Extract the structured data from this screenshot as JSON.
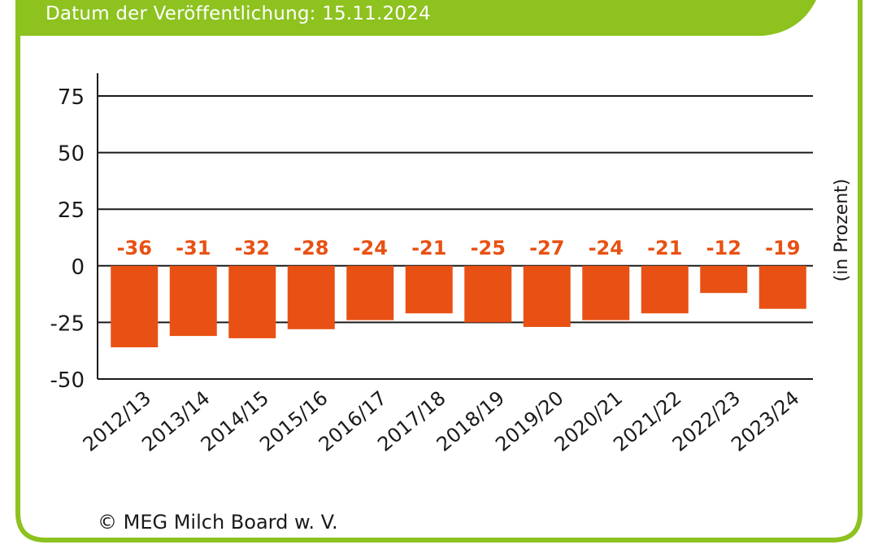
{
  "header": {
    "date_line": "Datum der Veröffentlichung: 15.11.2024"
  },
  "footer": {
    "copyright": "© MEG Milch Board w. V."
  },
  "colors": {
    "frame_green": "#8dc21f",
    "bar_orange": "#e85113",
    "label_orange": "#e85113",
    "grid": "#1a1a1a"
  },
  "chart_data": {
    "type": "bar",
    "categories": [
      "2012/13",
      "2013/14",
      "2014/15",
      "2015/16",
      "2016/17",
      "2017/18",
      "2018/19",
      "2019/20",
      "2020/21",
      "2021/22",
      "2022/23",
      "2023/24"
    ],
    "series": [
      {
        "values": [
          -36,
          -31,
          -32,
          -28,
          -24,
          -21,
          -25,
          -27,
          -24,
          -21,
          -12,
          -19
        ]
      }
    ],
    "data_labels": [
      "-36",
      "-31",
      "-32",
      "-28",
      "-24",
      "-21",
      "-25",
      "-27",
      "-24",
      "-21",
      "-12",
      "-19"
    ],
    "yticks": [
      75,
      50,
      25,
      0,
      -25,
      -50
    ],
    "ylim": [
      -50,
      75
    ],
    "ylabel": "(in Prozent)",
    "title": "",
    "xlabel": "",
    "grid": true
  }
}
